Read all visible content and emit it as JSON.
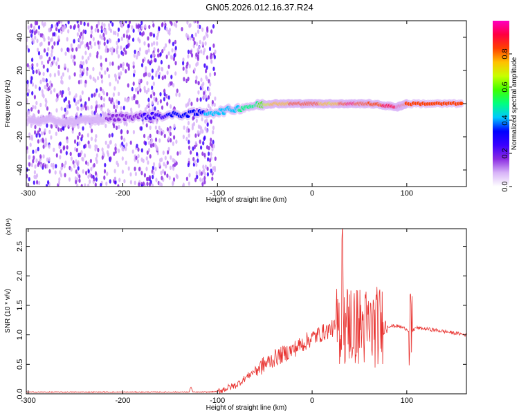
{
  "title": "GN05.2026.012.16.37.R24",
  "colors": {
    "snr_line": "#e8312e",
    "colormap": [
      "#ffffff",
      "#d8b4f8",
      "#8a2be2",
      "#3a00ff",
      "#0000ff",
      "#00c8ff",
      "#00ff80",
      "#40ff00",
      "#c8ff00",
      "#ffc000",
      "#ff4000",
      "#ff0040",
      "#ff00c0"
    ]
  },
  "chart_data": [
    {
      "type": "heatmap",
      "title": "GN05.2026.012.16.37.R24",
      "xlabel": "Height of straight line (km)",
      "ylabel": "Frequency (Hz)",
      "xlim": [
        -302,
        163
      ],
      "ylim": [
        -50,
        50
      ],
      "x_ticks": [
        "-300",
        "-200",
        "-100",
        "0",
        "100"
      ],
      "y_ticks": [
        "-40",
        "-20",
        "0",
        "20",
        "40"
      ],
      "colorbar": {
        "label": "Normalized spectral amplitude",
        "range": [
          0,
          1
        ],
        "ticks": [
          "0.0",
          "0.2",
          "0.4",
          "0.6",
          "0.8"
        ]
      },
      "ridge": [
        {
          "x": -300,
          "y": -10,
          "amp": 0.05
        },
        {
          "x": -250,
          "y": -11,
          "amp": 0.08
        },
        {
          "x": -200,
          "y": -8,
          "amp": 0.15
        },
        {
          "x": -150,
          "y": -7,
          "amp": 0.3
        },
        {
          "x": -100,
          "y": -5,
          "amp": 0.4
        },
        {
          "x": -60,
          "y": -1,
          "amp": 0.5
        },
        {
          "x": -40,
          "y": 0,
          "amp": 0.75
        },
        {
          "x": -20,
          "y": 0,
          "amp": 0.8
        },
        {
          "x": 0,
          "y": 0,
          "amp": 0.85
        },
        {
          "x": 20,
          "y": 0,
          "amp": 0.7
        },
        {
          "x": 40,
          "y": 0,
          "amp": 0.9
        },
        {
          "x": 60,
          "y": 0,
          "amp": 0.8
        },
        {
          "x": 90,
          "y": -2,
          "amp": 0.95
        },
        {
          "x": 100,
          "y": 0,
          "amp": 0.8
        },
        {
          "x": 160,
          "y": 0,
          "amp": 0.8
        }
      ]
    },
    {
      "type": "line",
      "xlabel": "Height of straight line (km)",
      "ylabel": "SNR (10 * v/v)",
      "y_multiplier": "(x10⁴)",
      "xlim": [
        -302,
        163
      ],
      "ylim": [
        0,
        2.8
      ],
      "x_ticks": [
        "-300",
        "-200",
        "-100",
        "0",
        "100"
      ],
      "y_ticks": [
        "0.0",
        "0.5",
        "1.0",
        "1.5",
        "2.0",
        "2.5"
      ],
      "series": [
        {
          "x": [
            -302,
            -250,
            -200,
            -150,
            -130,
            -128,
            -126,
            -110,
            -100,
            -80,
            -60,
            -40,
            -20,
            0,
            20,
            30,
            40,
            50,
            60,
            70,
            80,
            90,
            100,
            104,
            110,
            130,
            163
          ],
          "y": [
            0.03,
            0.03,
            0.03,
            0.03,
            0.03,
            0.12,
            0.03,
            0.03,
            0.04,
            0.15,
            0.4,
            0.6,
            0.75,
            0.95,
            1.1,
            1.15,
            1.2,
            1.15,
            1.1,
            1.15,
            1.15,
            1.15,
            1.1,
            1.05,
            1.12,
            1.08,
            1.0
          ]
        }
      ]
    }
  ]
}
